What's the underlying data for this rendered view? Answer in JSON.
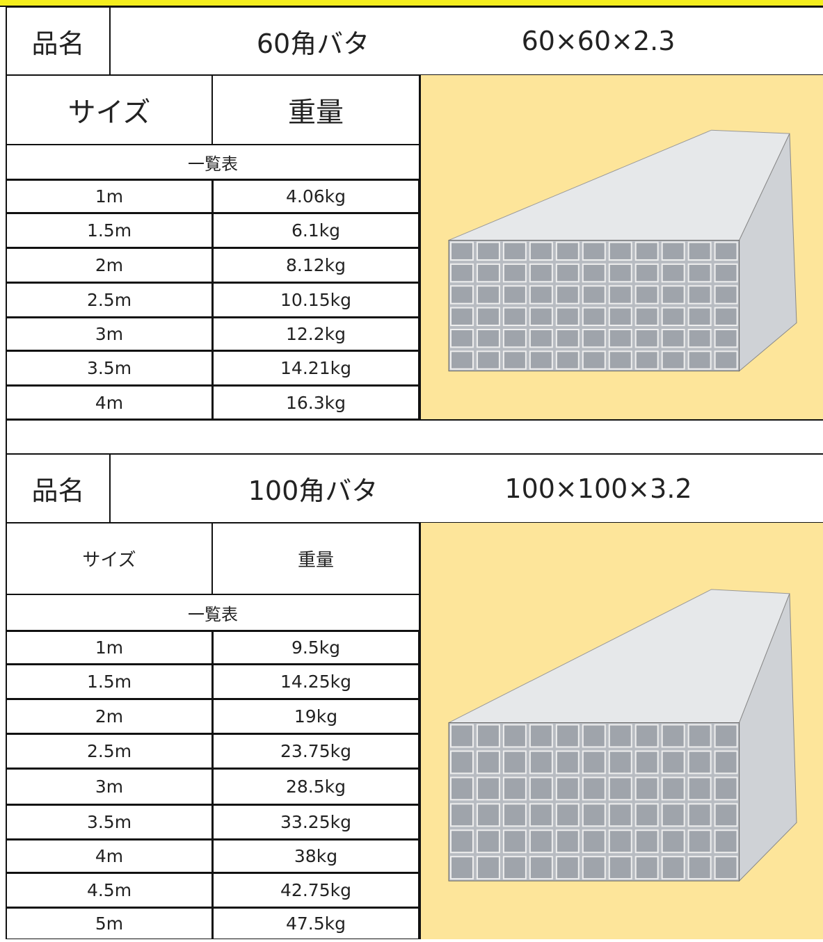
{
  "sections": [
    {
      "label": "品名",
      "name": "60角バタ",
      "spec": "60×60×2.3",
      "size_header": "サイズ",
      "weight_header": "重量",
      "list_label": "一覧表",
      "rows": [
        [
          "1m",
          "4.06kg"
        ],
        [
          "1.5m",
          "6.1kg"
        ],
        [
          "2m",
          "8.12kg"
        ],
        [
          "2.5m",
          "10.15kg"
        ],
        [
          "3m",
          "12.2kg"
        ],
        [
          "3.5m",
          "14.21kg"
        ],
        [
          "4m",
          "16.3kg"
        ]
      ]
    },
    {
      "label": "品名",
      "name": "100角バタ",
      "spec": "100×100×3.2",
      "size_header": "サイズ",
      "weight_header": "重量",
      "list_label": "一覧表",
      "rows": [
        [
          "1m",
          "9.5kg"
        ],
        [
          "1.5m",
          "14.25kg"
        ],
        [
          "2m",
          "19kg"
        ],
        [
          "2.5m",
          "23.75kg"
        ],
        [
          "3m",
          "28.5kg"
        ],
        [
          "3.5m",
          "33.25kg"
        ],
        [
          "4m",
          "38kg"
        ],
        [
          "4.5m",
          "42.75kg"
        ],
        [
          "5m",
          "47.5kg"
        ]
      ]
    }
  ]
}
